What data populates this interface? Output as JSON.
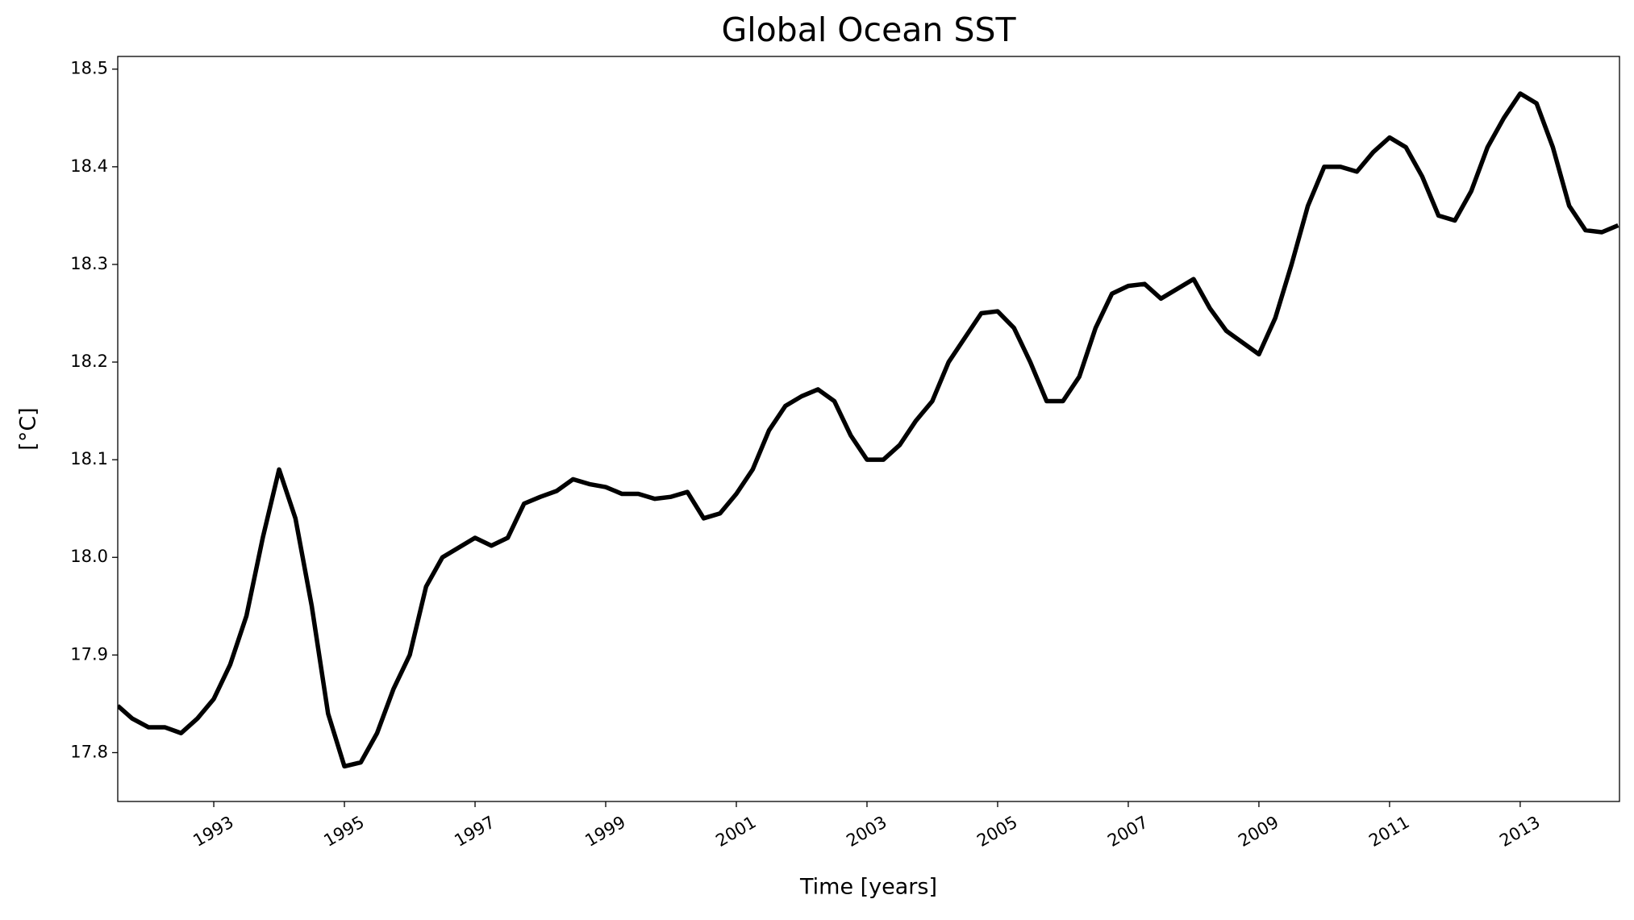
{
  "chart_data": {
    "type": "line",
    "title": "Global Ocean SST",
    "xlabel": "Time [years]",
    "ylabel": "[°C]",
    "x": [
      1991.53,
      1991.75,
      1992,
      1992.25,
      1992.5,
      1992.75,
      1993,
      1993.25,
      1993.5,
      1993.75,
      1994,
      1994.25,
      1994.5,
      1994.75,
      1995,
      1995.25,
      1995.5,
      1995.75,
      1996,
      1996.25,
      1996.5,
      1996.75,
      1997,
      1997.25,
      1997.5,
      1997.75,
      1998,
      1998.25,
      1998.5,
      1998.75,
      1999,
      1999.25,
      1999.5,
      1999.75,
      2000,
      2000.25,
      2000.5,
      2000.75,
      2001,
      2001.25,
      2001.5,
      2001.75,
      2002,
      2002.25,
      2002.5,
      2002.75,
      2003,
      2003.25,
      2003.5,
      2003.75,
      2004,
      2004.25,
      2004.5,
      2004.75,
      2005,
      2005.25,
      2005.5,
      2005.75,
      2006,
      2006.25,
      2006.5,
      2006.75,
      2007,
      2007.25,
      2007.5,
      2007.75,
      2008,
      2008.25,
      2008.5,
      2008.75,
      2009,
      2009.25,
      2009.5,
      2009.75,
      2010,
      2010.25,
      2010.5,
      2010.75,
      2011,
      2011.25,
      2011.5,
      2011.75,
      2012,
      2012.25,
      2012.5,
      2012.75,
      2013,
      2013.25,
      2013.5,
      2013.75,
      2014,
      2014.25,
      2014.5
    ],
    "series": [
      {
        "name": "Global Ocean SST",
        "color": "#000000",
        "values": [
          17.848,
          17.835,
          17.826,
          17.826,
          17.82,
          17.835,
          17.855,
          17.89,
          17.94,
          18.02,
          18.09,
          18.04,
          17.95,
          17.84,
          17.786,
          17.79,
          17.82,
          17.865,
          17.9,
          17.97,
          18.0,
          18.01,
          18.02,
          18.012,
          18.02,
          18.055,
          18.062,
          18.068,
          18.08,
          18.075,
          18.072,
          18.065,
          18.065,
          18.06,
          18.062,
          18.067,
          18.04,
          18.045,
          18.065,
          18.09,
          18.13,
          18.155,
          18.165,
          18.172,
          18.16,
          18.125,
          18.1,
          18.1,
          18.115,
          18.14,
          18.16,
          18.2,
          18.225,
          18.25,
          18.252,
          18.235,
          18.2,
          18.16,
          18.16,
          18.185,
          18.235,
          18.27,
          18.278,
          18.28,
          18.265,
          18.275,
          18.285,
          18.255,
          18.232,
          18.22,
          18.208,
          18.245,
          18.3,
          18.36,
          18.4,
          18.4,
          18.395,
          18.415,
          18.43,
          18.42,
          18.39,
          18.35,
          18.345,
          18.375,
          18.42,
          18.45,
          18.475,
          18.465,
          18.42,
          18.36,
          18.335,
          18.333,
          18.34
        ]
      }
    ],
    "xlim": [
      1991.53,
      2014.52
    ],
    "xticks": [
      1993,
      1995,
      1997,
      1999,
      2001,
      2003,
      2005,
      2007,
      2009,
      2011,
      2013
    ],
    "ylim": [
      17.75,
      18.513
    ],
    "yticks": [
      17.8,
      17.9,
      {
        "value": 18,
        "label": "18.0"
      },
      18.1,
      18.2,
      18.3,
      18.4,
      18.5
    ]
  }
}
